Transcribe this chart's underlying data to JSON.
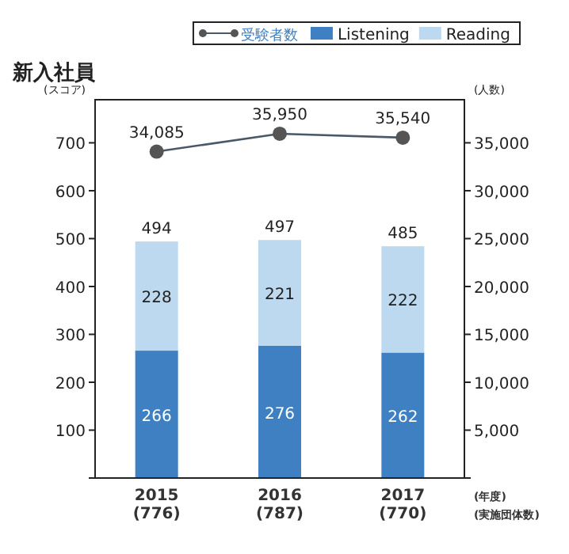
{
  "chart_data": {
    "type": "bar",
    "title": "新入社員",
    "ylabel": "(スコア)",
    "y2label": "(人数)",
    "categories": [
      "2015\n(776)",
      "2016\n(787)",
      "2017\n(770)"
    ],
    "annotations": [
      "(年度)",
      "(実施団体数)"
    ],
    "stacked": true,
    "data_labels": true,
    "totals": [
      "494",
      "497",
      "485"
    ],
    "legend": "top right",
    "marker": "circle",
    "series": [
      {
        "name": "受験者数",
        "type": "line",
        "axis": "y2",
        "color": "#4a5868",
        "values": [
          34085,
          35950,
          35540
        ],
        "value_labels": [
          "34,085",
          "35,950",
          "35,540"
        ]
      },
      {
        "name": "Listening",
        "color": "#3f80c2",
        "values": [
          266,
          276,
          262
        ]
      },
      {
        "name": "Reading",
        "color": "#bcd9ef",
        "values": [
          228,
          221,
          222
        ]
      }
    ],
    "ylim": [
      0,
      790
    ],
    "yticks": [
      {
        "value": 0,
        "label": null
      },
      100,
      200,
      300,
      400,
      500,
      600,
      700
    ],
    "y2lim": [
      0,
      39500
    ],
    "y2ticks": [
      {
        "value": 0,
        "label": null
      },
      {
        "value": 5000,
        "label": "5,000"
      },
      {
        "value": 10000,
        "label": "10,000"
      },
      {
        "value": 15000,
        "label": "15,000"
      },
      {
        "value": 20000,
        "label": "20,000"
      },
      {
        "value": 25000,
        "label": "25,000"
      },
      {
        "value": 30000,
        "label": "30,000"
      },
      {
        "value": 35000,
        "label": "35,000"
      }
    ]
  }
}
